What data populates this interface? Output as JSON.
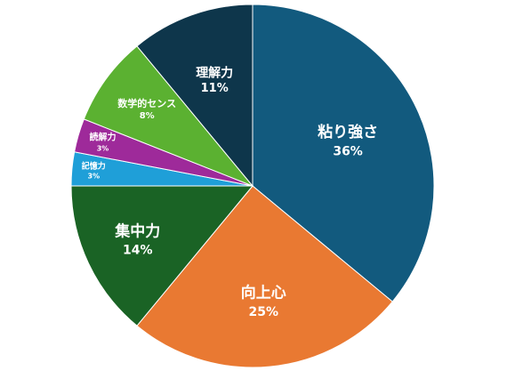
{
  "chart_data": {
    "type": "pie",
    "start_angle_deg": 0,
    "direction": "clockwise",
    "slices": [
      {
        "label": "粘り強さ",
        "value": 36,
        "value_label": "36%",
        "color": "#125a7e"
      },
      {
        "label": "向上心",
        "value": 25,
        "value_label": "25%",
        "color": "#e97932"
      },
      {
        "label": "集中力",
        "value": 14,
        "value_label": "14%",
        "color": "#1a6325"
      },
      {
        "label": "記憶力",
        "value": 3,
        "value_label": "3%",
        "color": "#1f9fd8"
      },
      {
        "label": "読解力",
        "value": 3,
        "value_label": "3%",
        "color": "#9e2a9a"
      },
      {
        "label": "数学的センス",
        "value": 8,
        "value_label": "8%",
        "color": "#5bb131"
      },
      {
        "label": "理解力",
        "value": 11,
        "value_label": "11%",
        "color": "#0e364b"
      }
    ]
  }
}
